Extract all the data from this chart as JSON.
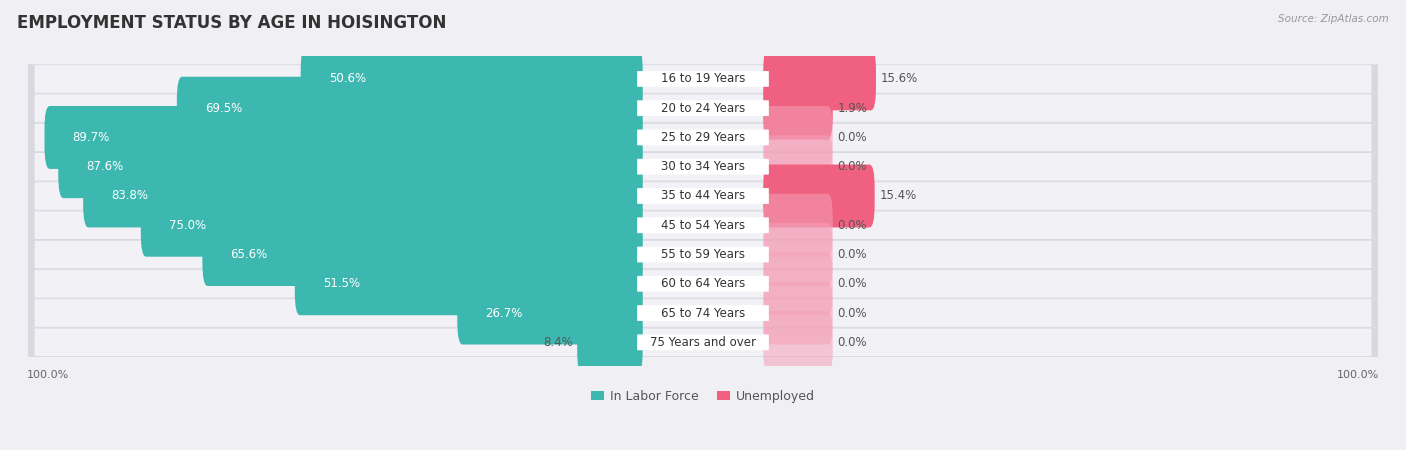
{
  "title": "EMPLOYMENT STATUS BY AGE IN HOISINGTON",
  "source": "Source: ZipAtlas.com",
  "categories": [
    "16 to 19 Years",
    "20 to 24 Years",
    "25 to 29 Years",
    "30 to 34 Years",
    "35 to 44 Years",
    "45 to 54 Years",
    "55 to 59 Years",
    "60 to 64 Years",
    "65 to 74 Years",
    "75 Years and over"
  ],
  "in_labor_force": [
    50.6,
    69.5,
    89.7,
    87.6,
    83.8,
    75.0,
    65.6,
    51.5,
    26.7,
    8.4
  ],
  "unemployed": [
    15.6,
    1.9,
    0.0,
    0.0,
    15.4,
    0.0,
    0.0,
    0.0,
    0.0,
    0.0
  ],
  "unemployed_stub": [
    15.6,
    1.9,
    5.0,
    5.0,
    15.4,
    5.0,
    5.0,
    5.0,
    5.0,
    5.0
  ],
  "unemployed_stub_alpha": [
    1.0,
    1.0,
    0.45,
    0.45,
    1.0,
    0.45,
    0.45,
    0.45,
    0.45,
    0.45
  ],
  "labor_color": "#3db8b0",
  "unemployed_color_full": "#f06080",
  "unemployed_color_stub": "#f4a0b8",
  "bg_color": "#f0f0f4",
  "row_bg_color": "#e8e8ee",
  "row_inner_color": "#f8f8fc",
  "bar_height": 0.55,
  "scale": 100,
  "legend_labor": "In Labor Force",
  "legend_unemployed": "Unemployed",
  "title_fontsize": 12,
  "source_fontsize": 7.5,
  "label_fontsize": 8.5,
  "cat_fontsize": 8.5,
  "axis_fontsize": 8
}
